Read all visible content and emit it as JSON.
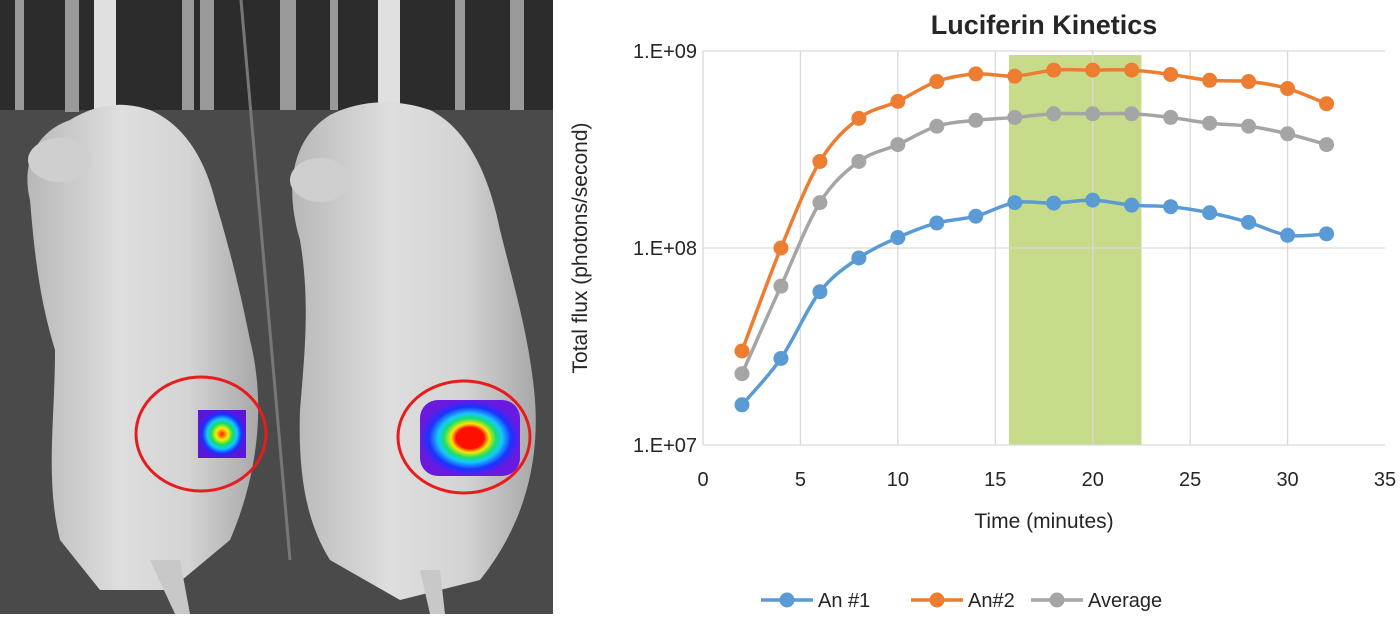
{
  "figure": {
    "image_panel": {
      "content": "bioluminescence image of two mice with tumor signal",
      "roi_color": "#e81c1c",
      "icon": "mouse-imaging-photo"
    }
  },
  "chart_data": {
    "type": "line",
    "title": "Luciferin Kinetics",
    "xlabel": "Time (minutes)",
    "ylabel": "Total flux (photons/second)",
    "xlim": [
      0,
      35
    ],
    "ylim": [
      10000000,
      1000000000
    ],
    "yscale": "log",
    "x_ticks": [
      "0",
      "5",
      "10",
      "15",
      "20",
      "25",
      "30",
      "35"
    ],
    "y_ticks": [
      "1.E+07",
      "1.E+08",
      "1.E+09"
    ],
    "grid": true,
    "legend_position": "bottom",
    "highlight_band": {
      "x_start": 15.7,
      "x_end": 22.5,
      "color": "#c6dc8a"
    },
    "x": [
      2,
      4,
      6,
      8,
      10,
      12,
      14,
      16,
      18,
      20,
      22,
      24,
      26,
      28,
      30,
      32
    ],
    "series": [
      {
        "name": "An #1",
        "color": "#5b9bd5",
        "values": [
          16000000,
          27500000,
          60000000,
          89000000,
          113000000,
          134000000,
          145000000,
          170000000,
          169000000,
          175000000,
          165000000,
          162000000,
          151000000,
          135000000,
          116000000,
          118000000
        ]
      },
      {
        "name": "An#2",
        "color": "#ed7d31",
        "values": [
          30000000,
          100000000,
          275000000,
          455000000,
          555000000,
          700000000,
          765000000,
          745000000,
          800000000,
          800000000,
          800000000,
          760000000,
          710000000,
          700000000,
          645000000,
          540000000
        ]
      },
      {
        "name": "Average",
        "color": "#a5a5a5",
        "values": [
          23000000,
          64000000,
          170000000,
          275000000,
          335000000,
          415000000,
          445000000,
          460000000,
          480000000,
          480000000,
          480000000,
          460000000,
          430000000,
          415000000,
          380000000,
          335000000
        ]
      }
    ]
  }
}
